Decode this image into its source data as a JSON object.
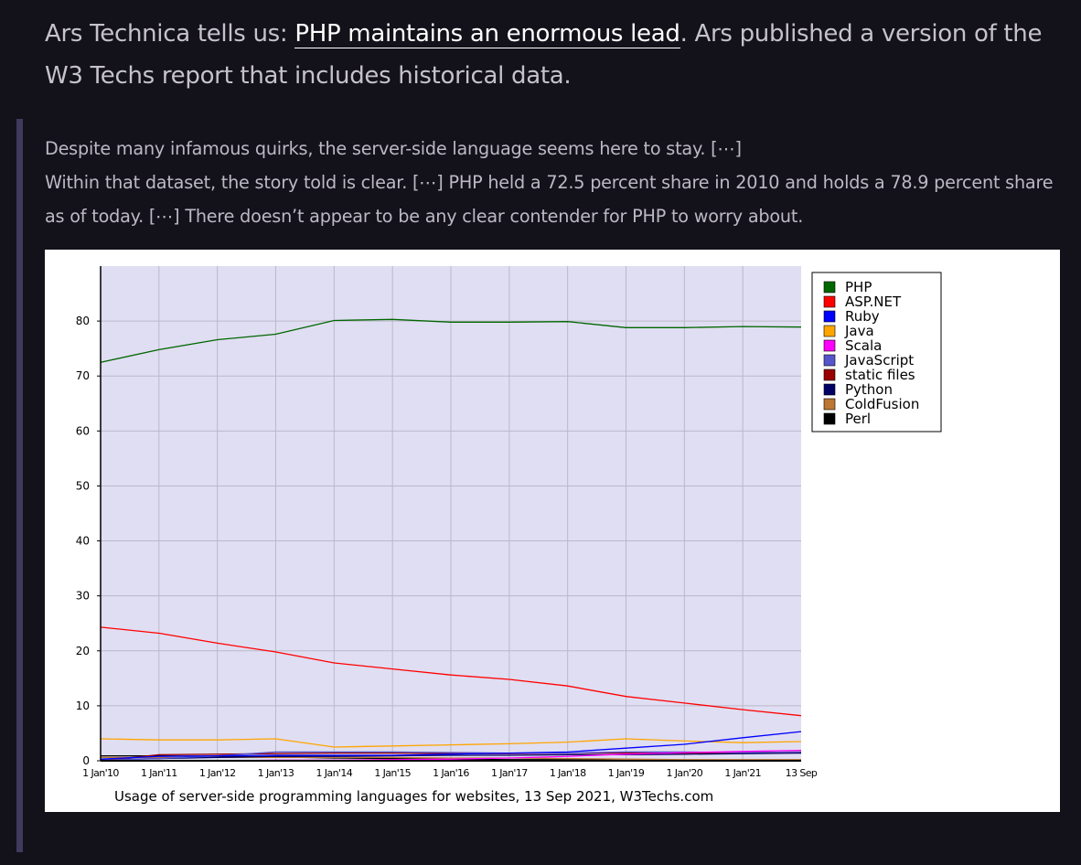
{
  "intro": {
    "prefix": "Ars Technica tells us: ",
    "link_text": "PHP maintains an enormous lead",
    "suffix": ". Ars published a version of the W3 Techs report that includes historical data."
  },
  "quote": {
    "line1": "Despite many infamous quirks, the server-side language seems here to stay. [⋯]",
    "line2": "Within that dataset, the story told is clear. [⋯] PHP held a 72.5 percent share in 2010 and holds a 78.9 percent share as of today. [⋯] There doesn’t appear to be any clear contender for PHP to worry about."
  },
  "chart_data": {
    "type": "line",
    "caption": "Usage of server-side programming languages for websites, 13 Sep 2021, W3Techs.com",
    "categories": [
      "1 Jan'10",
      "1 Jan'11",
      "1 Jan'12",
      "1 Jan'13",
      "1 Jan'14",
      "1 Jan'15",
      "1 Jan'16",
      "1 Jan'17",
      "1 Jan'18",
      "1 Jan'19",
      "1 Jan'20",
      "1 Jan'21",
      "13 Sep"
    ],
    "ylim": [
      0,
      90
    ],
    "yticks": [
      0,
      10,
      20,
      30,
      40,
      50,
      60,
      70,
      80
    ],
    "grid": true,
    "legend_position": "right",
    "series": [
      {
        "name": "PHP",
        "color": "#006600",
        "values": [
          72.5,
          74.8,
          76.6,
          77.6,
          80.1,
          80.3,
          79.8,
          79.8,
          79.9,
          78.8,
          78.8,
          79.0,
          78.9
        ]
      },
      {
        "name": "ASP.NET",
        "color": "#ff0000",
        "values": [
          24.3,
          23.2,
          21.4,
          19.8,
          17.8,
          16.7,
          15.6,
          14.8,
          13.6,
          11.7,
          10.5,
          9.3,
          8.2
        ]
      },
      {
        "name": "Ruby",
        "color": "#0000ff",
        "values": [
          0.3,
          0.8,
          0.9,
          1.0,
          1.0,
          1.0,
          1.2,
          1.4,
          1.6,
          2.3,
          3.0,
          4.2,
          5.3
        ]
      },
      {
        "name": "Java",
        "color": "#ffa500",
        "values": [
          4.0,
          3.8,
          3.8,
          4.0,
          2.5,
          2.7,
          2.9,
          3.1,
          3.4,
          4.0,
          3.6,
          3.3,
          3.5
        ]
      },
      {
        "name": "Scala",
        "color": "#ff00ff",
        "values": [
          0.0,
          0.0,
          0.0,
          0.1,
          0.1,
          0.2,
          0.3,
          0.5,
          0.8,
          1.2,
          1.5,
          1.7,
          1.9
        ]
      },
      {
        "name": "JavaScript",
        "color": "#5555cc",
        "values": [
          0.1,
          0.4,
          0.9,
          1.6,
          1.6,
          1.6,
          1.5,
          1.4,
          1.4,
          1.6,
          1.6,
          1.5,
          1.6
        ]
      },
      {
        "name": "static files",
        "color": "#990000",
        "values": [
          0.0,
          1.1,
          1.2,
          1.3,
          1.4,
          1.4,
          1.3,
          1.3,
          1.4,
          1.4,
          1.4,
          1.5,
          1.6
        ]
      },
      {
        "name": "Python",
        "color": "#000066",
        "values": [
          0.2,
          0.4,
          0.6,
          0.8,
          0.8,
          0.9,
          1.0,
          1.0,
          1.1,
          1.1,
          1.2,
          1.3,
          1.4
        ]
      },
      {
        "name": "ColdFusion",
        "color": "#bb7733",
        "values": [
          0.6,
          0.6,
          0.6,
          0.6,
          0.6,
          0.6,
          0.5,
          0.5,
          0.4,
          0.3,
          0.2,
          0.2,
          0.2
        ]
      },
      {
        "name": "Perl",
        "color": "#000000",
        "values": [
          0.9,
          0.9,
          0.8,
          0.7,
          0.5,
          0.4,
          0.3,
          0.2,
          0.2,
          0.1,
          0.1,
          0.1,
          0.1
        ]
      }
    ]
  }
}
